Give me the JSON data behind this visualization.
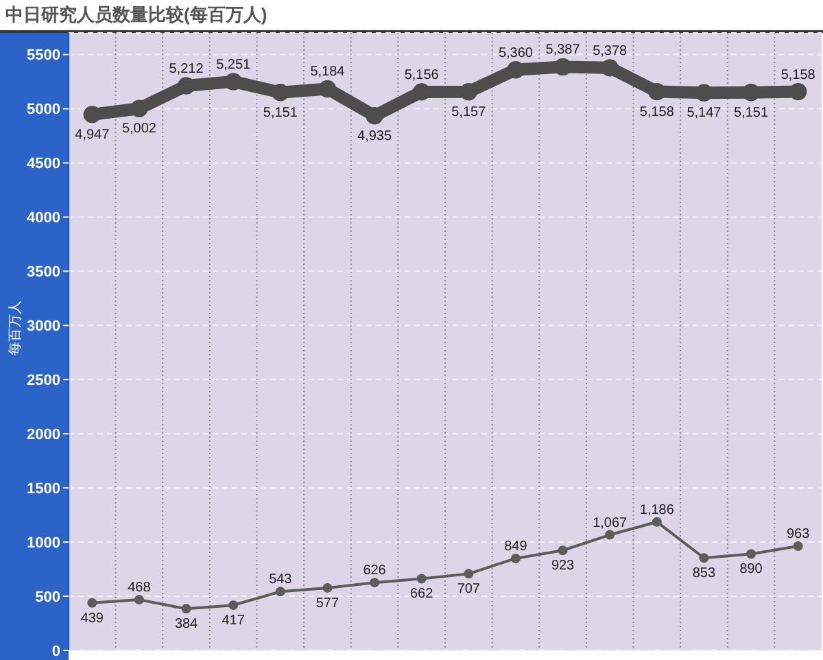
{
  "chart_data": {
    "type": "line",
    "title": "中日研究人员数量比较(每百万人)",
    "ylabel": "每百万人",
    "categories": [
      null,
      null,
      null,
      null,
      null,
      null,
      null,
      null,
      null,
      null,
      null,
      null,
      null,
      null,
      null,
      null
    ],
    "series": [
      {
        "color": "#4d4d4d",
        "values": [
          4947,
          5002,
          5212,
          5251,
          5151,
          5184,
          4935,
          5156,
          5157,
          5360,
          5387,
          5378,
          5158,
          5147,
          5151,
          5158
        ],
        "value_labels": [
          "4,947",
          "5,002",
          "5,212",
          "5,251",
          "5,151",
          "5,184",
          "4,935",
          "5,156",
          "5,157",
          "5,360",
          "5,387",
          "5,378",
          "5,158",
          "5,147",
          "5,151",
          "5,158"
        ]
      },
      {
        "color": "#5c5c5c",
        "values": [
          439,
          468,
          384,
          417,
          543,
          577,
          626,
          662,
          707,
          849,
          923,
          1067,
          1186,
          853,
          890,
          963
        ],
        "value_labels": [
          "439",
          "468",
          "384",
          "417",
          "543",
          "577",
          "626",
          "662",
          "707",
          "849",
          "923",
          "1,067",
          "1,186",
          "853",
          "890",
          "963"
        ]
      }
    ],
    "ylim": [
      0,
      5700
    ],
    "yticks": [
      0,
      500,
      1000,
      1500,
      2000,
      2500,
      3000,
      3500,
      4000,
      4500,
      5000,
      5500
    ],
    "grid": true,
    "marker": "circle",
    "tick_labels": "y"
  }
}
